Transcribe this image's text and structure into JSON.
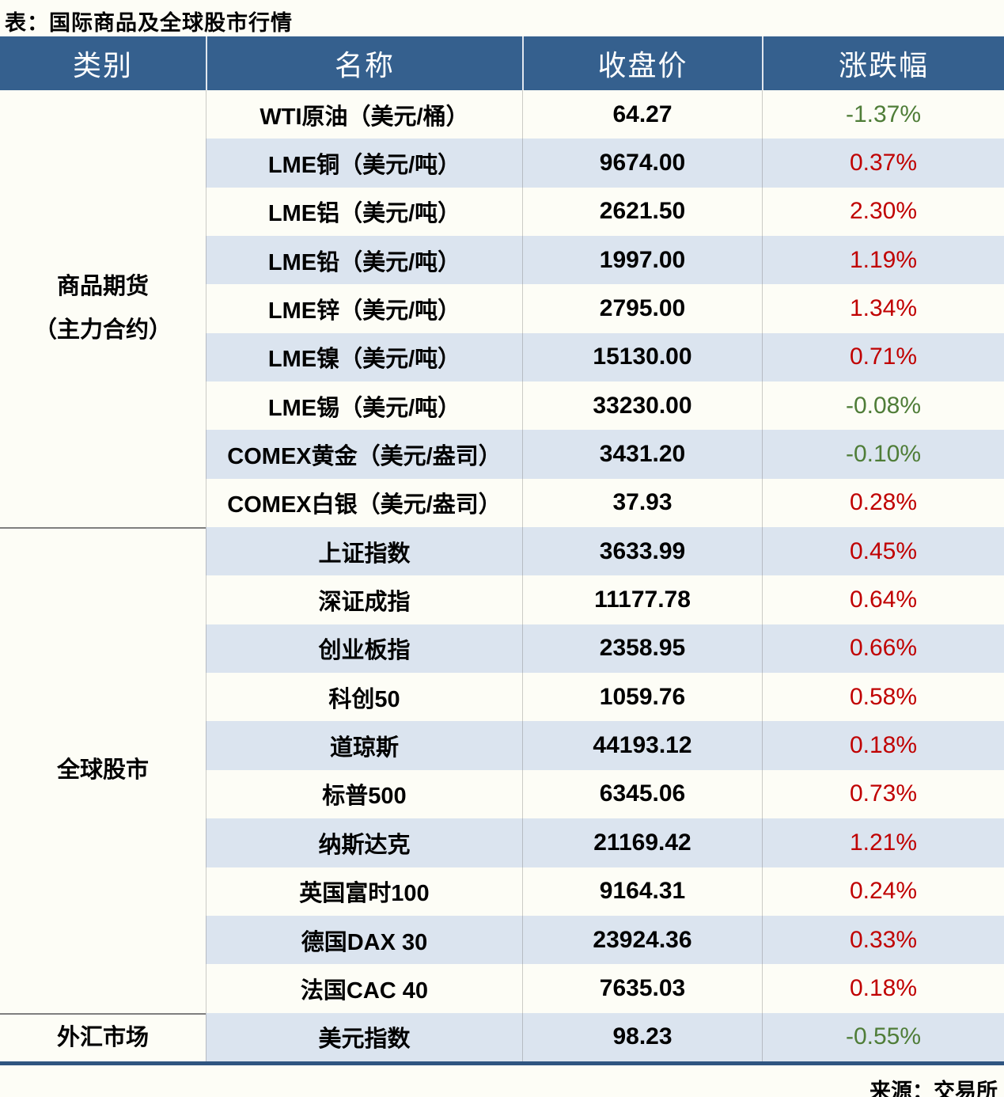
{
  "colors": {
    "up": "#C00000",
    "down": "#4F7D38",
    "header_bg": "#35608E",
    "stripe": "#DBE4EF",
    "bottom_border": "#2F5580"
  },
  "chart_data": {
    "type": "table",
    "title": "表：国际商品及全球股市行情",
    "columns": [
      "类别",
      "名称",
      "收盘价",
      "涨跌幅"
    ],
    "sections": [
      {
        "category": "商品期货（主力合约）",
        "category_lines": [
          "商品期货",
          "（主力合约）"
        ],
        "rows": [
          {
            "name": "WTI原油（美元/桶）",
            "close": "64.27",
            "change": "-1.37%"
          },
          {
            "name": "LME铜（美元/吨）",
            "close": "9674.00",
            "change": "0.37%"
          },
          {
            "name": "LME铝（美元/吨）",
            "close": "2621.50",
            "change": "2.30%"
          },
          {
            "name": "LME铅（美元/吨）",
            "close": "1997.00",
            "change": "1.19%"
          },
          {
            "name": "LME锌（美元/吨）",
            "close": "2795.00",
            "change": "1.34%"
          },
          {
            "name": "LME镍（美元/吨）",
            "close": "15130.00",
            "change": "0.71%"
          },
          {
            "name": "LME锡（美元/吨）",
            "close": "33230.00",
            "change": "-0.08%"
          },
          {
            "name": "COMEX黄金（美元/盎司）",
            "close": "3431.20",
            "change": "-0.10%"
          },
          {
            "name": "COMEX白银（美元/盎司）",
            "close": "37.93",
            "change": "0.28%"
          }
        ]
      },
      {
        "category": "全球股市",
        "category_lines": [
          "全球股市"
        ],
        "rows": [
          {
            "name": "上证指数",
            "close": "3633.99",
            "change": "0.45%"
          },
          {
            "name": "深证成指",
            "close": "11177.78",
            "change": "0.64%"
          },
          {
            "name": "创业板指",
            "close": "2358.95",
            "change": "0.66%"
          },
          {
            "name": "科创50",
            "close": "1059.76",
            "change": "0.58%"
          },
          {
            "name": "道琼斯",
            "close": "44193.12",
            "change": "0.18%"
          },
          {
            "name": "标普500",
            "close": "6345.06",
            "change": "0.73%"
          },
          {
            "name": "纳斯达克",
            "close": "21169.42",
            "change": "1.21%"
          },
          {
            "name": "英国富时100",
            "close": "9164.31",
            "change": "0.24%"
          },
          {
            "name": "德国DAX 30",
            "close": "23924.36",
            "change": "0.33%"
          },
          {
            "name": "法国CAC 40",
            "close": "7635.03",
            "change": "0.18%"
          }
        ]
      },
      {
        "category": "外汇市场",
        "category_lines": [
          "外汇市场"
        ],
        "rows": [
          {
            "name": "美元指数",
            "close": "98.23",
            "change": "-0.55%"
          }
        ]
      }
    ],
    "source": "来源：交易所"
  }
}
